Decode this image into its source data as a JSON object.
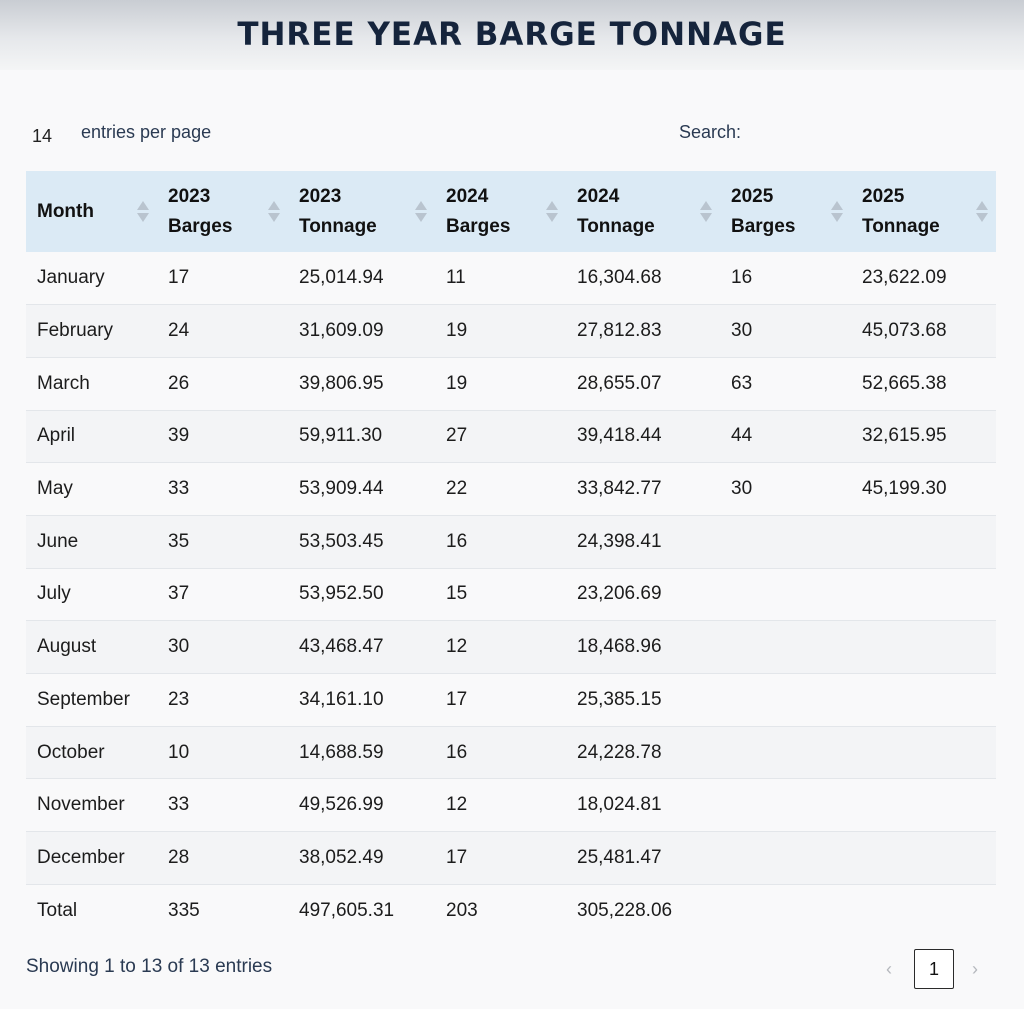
{
  "title": "THREE YEAR BARGE TONNAGE",
  "controls": {
    "per_page_value": "14",
    "per_page_label": "entries per page",
    "search_label": "Search:",
    "search_value": ""
  },
  "table": {
    "headers": [
      {
        "line1": "Month",
        "line2": ""
      },
      {
        "line1": "2023",
        "line2": "Barges"
      },
      {
        "line1": "2023",
        "line2": "Tonnage"
      },
      {
        "line1": "2024",
        "line2": "Barges"
      },
      {
        "line1": "2024",
        "line2": "Tonnage"
      },
      {
        "line1": "2025",
        "line2": "Barges"
      },
      {
        "line1": "2025",
        "line2": "Tonnage"
      }
    ],
    "rows": [
      [
        "January",
        "17",
        "25,014.94",
        "11",
        "16,304.68",
        "16",
        "23,622.09"
      ],
      [
        "February",
        "24",
        "31,609.09",
        "19",
        "27,812.83",
        "30",
        "45,073.68"
      ],
      [
        "March",
        "26",
        "39,806.95",
        "19",
        "28,655.07",
        "63",
        "52,665.38"
      ],
      [
        "April",
        "39",
        "59,911.30",
        "27",
        "39,418.44",
        "44",
        "32,615.95"
      ],
      [
        "May",
        "33",
        "53,909.44",
        "22",
        "33,842.77",
        "30",
        "45,199.30"
      ],
      [
        "June",
        "35",
        "53,503.45",
        "16",
        "24,398.41",
        "",
        ""
      ],
      [
        "July",
        "37",
        "53,952.50",
        "15",
        "23,206.69",
        "",
        ""
      ],
      [
        "August",
        "30",
        "43,468.47",
        "12",
        "18,468.96",
        "",
        ""
      ],
      [
        "September",
        "23",
        "34,161.10",
        "17",
        "25,385.15",
        "",
        ""
      ],
      [
        "October",
        "10",
        "14,688.59",
        "16",
        "24,228.78",
        "",
        ""
      ],
      [
        "November",
        "33",
        "49,526.99",
        "12",
        "18,024.81",
        "",
        ""
      ],
      [
        "December",
        "28",
        "38,052.49",
        "17",
        "25,481.47",
        "",
        ""
      ],
      [
        "Total",
        "335",
        "497,605.31",
        "203",
        "305,228.06",
        "",
        ""
      ]
    ]
  },
  "footer": {
    "info": "Showing 1 to 13 of 13 entries",
    "prev": "‹",
    "current_page": "1",
    "next": "›"
  },
  "colors": {
    "title": "#15243c",
    "header_bg": "#dbeaf5",
    "stripe": "#f3f4f6",
    "text_secondary": "#2a3a52"
  }
}
